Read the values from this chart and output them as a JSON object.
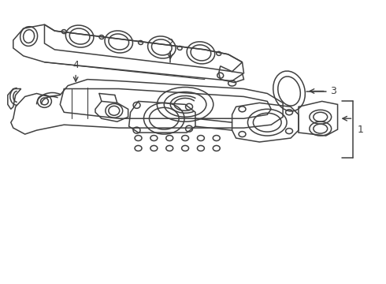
{
  "background_color": "#ffffff",
  "line_color": "#404040",
  "line_width": 1.1,
  "label_color": "#222222",
  "figsize": [
    4.9,
    3.6
  ],
  "dpi": 100
}
